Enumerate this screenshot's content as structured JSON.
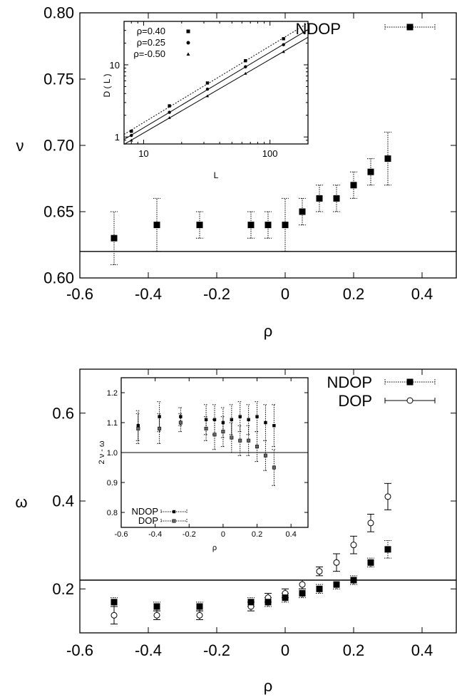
{
  "chart_data": [
    {
      "type": "scatter",
      "xlabel": "ρ",
      "ylabel": "ν",
      "xlim": [
        -0.6,
        0.5
      ],
      "ylim": [
        0.6,
        0.8
      ],
      "x_ticks": [
        "-0.6",
        "-0.4",
        "-0.2",
        "0",
        "0.2",
        "0.4"
      ],
      "y_ticks": [
        "0.60",
        "0.65",
        "0.70",
        "0.75",
        "0.80"
      ],
      "reference_line_y": 0.62,
      "legend_position": "top-right",
      "series": [
        {
          "name": "NDOP",
          "marker": "filled-square",
          "errorbar_style": "dotted",
          "points": [
            {
              "x": -0.5,
              "y": 0.63,
              "lo": 0.61,
              "hi": 0.65
            },
            {
              "x": -0.375,
              "y": 0.64,
              "lo": 0.62,
              "hi": 0.66
            },
            {
              "x": -0.25,
              "y": 0.64,
              "lo": 0.63,
              "hi": 0.65
            },
            {
              "x": -0.1,
              "y": 0.64,
              "lo": 0.63,
              "hi": 0.65
            },
            {
              "x": -0.05,
              "y": 0.64,
              "lo": 0.63,
              "hi": 0.65
            },
            {
              "x": 0.0,
              "y": 0.64,
              "lo": 0.62,
              "hi": 0.66
            },
            {
              "x": 0.05,
              "y": 0.65,
              "lo": 0.64,
              "hi": 0.66
            },
            {
              "x": 0.1,
              "y": 0.66,
              "lo": 0.65,
              "hi": 0.67
            },
            {
              "x": 0.15,
              "y": 0.66,
              "lo": 0.65,
              "hi": 0.67
            },
            {
              "x": 0.2,
              "y": 0.67,
              "lo": 0.66,
              "hi": 0.68
            },
            {
              "x": 0.25,
              "y": 0.68,
              "lo": 0.67,
              "hi": 0.69
            },
            {
              "x": 0.3,
              "y": 0.69,
              "lo": 0.67,
              "hi": 0.71
            }
          ]
        }
      ],
      "inset": {
        "type": "scatter",
        "xlabel": "L",
        "ylabel": "D ( L )",
        "x_scale": "log",
        "y_scale": "log",
        "xlim": [
          7,
          200
        ],
        "ylim": [
          0.8,
          40
        ],
        "x_ticks": [
          "10",
          "100"
        ],
        "y_ticks": [
          "1",
          "10"
        ],
        "legend_position": "top-left",
        "series": [
          {
            "name": "ρ=0.40",
            "marker": "small-square",
            "fit": "dotted",
            "points": [
              {
                "x": 8,
                "y": 1.2
              },
              {
                "x": 16,
                "y": 2.7
              },
              {
                "x": 32,
                "y": 5.6
              },
              {
                "x": 64,
                "y": 11.4
              },
              {
                "x": 128,
                "y": 23
              }
            ]
          },
          {
            "name": "ρ=0.25",
            "marker": "dot",
            "fit": "solid",
            "points": [
              {
                "x": 8,
                "y": 1.05
              },
              {
                "x": 16,
                "y": 2.2
              },
              {
                "x": 32,
                "y": 4.6
              },
              {
                "x": 64,
                "y": 9.4
              },
              {
                "x": 128,
                "y": 19
              }
            ]
          },
          {
            "name": "ρ=-0.50",
            "marker": "triangle",
            "fit": "solid",
            "points": [
              {
                "x": 8,
                "y": 0.9
              },
              {
                "x": 16,
                "y": 1.85
              },
              {
                "x": 32,
                "y": 3.7
              },
              {
                "x": 64,
                "y": 7.6
              },
              {
                "x": 128,
                "y": 15.2
              }
            ]
          }
        ]
      }
    },
    {
      "type": "scatter",
      "xlabel": "ρ",
      "ylabel": "ω",
      "xlim": [
        -0.6,
        0.5
      ],
      "ylim": [
        0.1,
        0.7
      ],
      "x_ticks": [
        "-0.6",
        "-0.4",
        "-0.2",
        "0",
        "0.2",
        "0.4"
      ],
      "y_ticks": [
        "0.2",
        "0.4",
        "0.6"
      ],
      "reference_line_y": 0.22,
      "legend_position": "top-right",
      "series": [
        {
          "name": "NDOP",
          "marker": "filled-square",
          "errorbar_style": "dotted",
          "points": [
            {
              "x": -0.5,
              "y": 0.17,
              "lo": 0.16,
              "hi": 0.18
            },
            {
              "x": -0.375,
              "y": 0.16,
              "lo": 0.15,
              "hi": 0.17
            },
            {
              "x": -0.25,
              "y": 0.16,
              "lo": 0.15,
              "hi": 0.17
            },
            {
              "x": -0.1,
              "y": 0.17,
              "lo": 0.16,
              "hi": 0.18
            },
            {
              "x": -0.05,
              "y": 0.17,
              "lo": 0.16,
              "hi": 0.18
            },
            {
              "x": 0.0,
              "y": 0.18,
              "lo": 0.17,
              "hi": 0.19
            },
            {
              "x": 0.05,
              "y": 0.19,
              "lo": 0.18,
              "hi": 0.2
            },
            {
              "x": 0.1,
              "y": 0.2,
              "lo": 0.19,
              "hi": 0.21
            },
            {
              "x": 0.15,
              "y": 0.21,
              "lo": 0.2,
              "hi": 0.22
            },
            {
              "x": 0.2,
              "y": 0.22,
              "lo": 0.21,
              "hi": 0.23
            },
            {
              "x": 0.25,
              "y": 0.26,
              "lo": 0.25,
              "hi": 0.27
            },
            {
              "x": 0.3,
              "y": 0.29,
              "lo": 0.27,
              "hi": 0.31
            }
          ]
        },
        {
          "name": "DOP",
          "marker": "open-circle",
          "errorbar_style": "solid",
          "points": [
            {
              "x": -0.5,
              "y": 0.14,
              "lo": 0.12,
              "hi": 0.16
            },
            {
              "x": -0.375,
              "y": 0.14,
              "lo": 0.13,
              "hi": 0.15
            },
            {
              "x": -0.25,
              "y": 0.14,
              "lo": 0.13,
              "hi": 0.15
            },
            {
              "x": -0.1,
              "y": 0.16,
              "lo": 0.15,
              "hi": 0.17
            },
            {
              "x": -0.05,
              "y": 0.18,
              "lo": 0.17,
              "hi": 0.19
            },
            {
              "x": 0.0,
              "y": 0.19,
              "lo": 0.18,
              "hi": 0.2
            },
            {
              "x": 0.05,
              "y": 0.21,
              "lo": 0.2,
              "hi": 0.22
            },
            {
              "x": 0.1,
              "y": 0.24,
              "lo": 0.23,
              "hi": 0.25
            },
            {
              "x": 0.15,
              "y": 0.26,
              "lo": 0.24,
              "hi": 0.28
            },
            {
              "x": 0.2,
              "y": 0.3,
              "lo": 0.28,
              "hi": 0.32
            },
            {
              "x": 0.25,
              "y": 0.35,
              "lo": 0.33,
              "hi": 0.37
            },
            {
              "x": 0.3,
              "y": 0.41,
              "lo": 0.38,
              "hi": 0.44
            }
          ]
        }
      ],
      "inset": {
        "type": "scatter",
        "xlabel": "ρ",
        "ylabel": "2 ν - ω",
        "xlim": [
          -0.6,
          0.5
        ],
        "ylim": [
          0.75,
          1.25
        ],
        "x_ticks": [
          "-0.6",
          "-0.4",
          "-0.2",
          "0",
          "0.2",
          "0.4"
        ],
        "y_ticks": [
          "0.8",
          "0.9",
          "1.0",
          "1.1",
          "1.2"
        ],
        "reference_line_y": 1.0,
        "legend_position": "bottom-left",
        "series": [
          {
            "name": "NDOP",
            "marker": "small-square",
            "errorbar_style": "dotted",
            "points": [
              {
                "x": -0.5,
                "y": 1.09,
                "lo": 1.04,
                "hi": 1.14
              },
              {
                "x": -0.375,
                "y": 1.12,
                "lo": 1.07,
                "hi": 1.17
              },
              {
                "x": -0.25,
                "y": 1.12,
                "lo": 1.09,
                "hi": 1.15
              },
              {
                "x": -0.1,
                "y": 1.11,
                "lo": 1.06,
                "hi": 1.16
              },
              {
                "x": -0.05,
                "y": 1.11,
                "lo": 1.06,
                "hi": 1.16
              },
              {
                "x": 0.0,
                "y": 1.1,
                "lo": 1.05,
                "hi": 1.15
              },
              {
                "x": 0.05,
                "y": 1.11,
                "lo": 1.06,
                "hi": 1.16
              },
              {
                "x": 0.1,
                "y": 1.12,
                "lo": 1.07,
                "hi": 1.17
              },
              {
                "x": 0.15,
                "y": 1.11,
                "lo": 1.06,
                "hi": 1.16
              },
              {
                "x": 0.2,
                "y": 1.12,
                "lo": 1.07,
                "hi": 1.17
              },
              {
                "x": 0.25,
                "y": 1.1,
                "lo": 1.04,
                "hi": 1.16
              },
              {
                "x": 0.3,
                "y": 1.09,
                "lo": 1.02,
                "hi": 1.16
              }
            ]
          },
          {
            "name": "DOP",
            "marker": "small-open-square",
            "errorbar_style": "dotted",
            "points": [
              {
                "x": -0.5,
                "y": 1.08,
                "lo": 1.03,
                "hi": 1.13
              },
              {
                "x": -0.375,
                "y": 1.08,
                "lo": 1.03,
                "hi": 1.13
              },
              {
                "x": -0.25,
                "y": 1.1,
                "lo": 1.07,
                "hi": 1.13
              },
              {
                "x": -0.1,
                "y": 1.08,
                "lo": 1.04,
                "hi": 1.12
              },
              {
                "x": -0.05,
                "y": 1.06,
                "lo": 1.01,
                "hi": 1.11
              },
              {
                "x": 0.0,
                "y": 1.07,
                "lo": 1.02,
                "hi": 1.12
              },
              {
                "x": 0.05,
                "y": 1.05,
                "lo": 1.0,
                "hi": 1.1
              },
              {
                "x": 0.1,
                "y": 1.04,
                "lo": 0.99,
                "hi": 1.09
              },
              {
                "x": 0.15,
                "y": 1.04,
                "lo": 0.99,
                "hi": 1.09
              },
              {
                "x": 0.2,
                "y": 1.02,
                "lo": 0.97,
                "hi": 1.07
              },
              {
                "x": 0.25,
                "y": 0.99,
                "lo": 0.94,
                "hi": 1.04
              },
              {
                "x": 0.3,
                "y": 0.95,
                "lo": 0.89,
                "hi": 1.01
              }
            ]
          }
        ]
      }
    }
  ]
}
